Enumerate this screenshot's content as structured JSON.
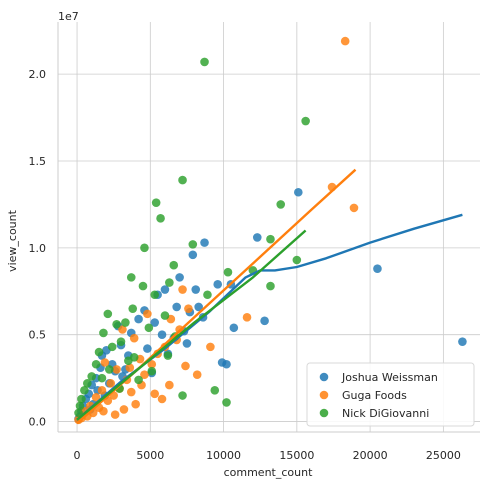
{
  "chart_data": {
    "type": "scatter",
    "title": "",
    "xlabel": "comment_count",
    "ylabel": "view_count",
    "y_offset_text": "1e7",
    "xlim": [
      -1300,
      27500
    ],
    "ylim": [
      -600000,
      23000000
    ],
    "x_ticks": [
      0,
      5000,
      10000,
      15000,
      20000,
      25000
    ],
    "x_tick_labels": [
      "0",
      "5000",
      "10000",
      "15000",
      "20000",
      "25000"
    ],
    "y_ticks": [
      0,
      5000000,
      10000000,
      15000000,
      20000000
    ],
    "y_tick_labels": [
      "0.0",
      "0.5",
      "1.0",
      "1.5",
      "2.0"
    ],
    "grid": true,
    "legend_position": "bottom-right",
    "series": [
      {
        "name": "Joshua Weissman",
        "color": "#1f77b4",
        "points": [
          [
            26300,
            4600000
          ],
          [
            20500,
            8800000
          ],
          [
            15100,
            13200000
          ],
          [
            12300,
            10600000
          ],
          [
            12800,
            5800000
          ],
          [
            10500,
            7900000
          ],
          [
            10700,
            5400000
          ],
          [
            9600,
            7900000
          ],
          [
            9900,
            3400000
          ],
          [
            10200,
            3300000
          ],
          [
            8700,
            10300000
          ],
          [
            8600,
            6000000
          ],
          [
            7900,
            9600000
          ],
          [
            8100,
            7600000
          ],
          [
            7700,
            6300000
          ],
          [
            7500,
            4500000
          ],
          [
            7000,
            8300000
          ],
          [
            6800,
            6600000
          ],
          [
            6000,
            7600000
          ],
          [
            5500,
            7300000
          ],
          [
            5800,
            5000000
          ],
          [
            4200,
            5900000
          ],
          [
            3700,
            5100000
          ],
          [
            3000,
            4400000
          ],
          [
            2800,
            5500000
          ],
          [
            2000,
            4100000
          ],
          [
            1700,
            3800000
          ],
          [
            1600,
            3100000
          ],
          [
            1300,
            2500000
          ],
          [
            1000,
            2100000
          ],
          [
            800,
            1600000
          ],
          [
            600,
            1300000
          ],
          [
            400,
            900000
          ],
          [
            300,
            600000
          ],
          [
            200,
            300000
          ],
          [
            100,
            150000
          ],
          [
            3500,
            3800000
          ],
          [
            2400,
            3300000
          ],
          [
            4800,
            4200000
          ],
          [
            6200,
            3900000
          ],
          [
            5100,
            2800000
          ],
          [
            7300,
            5200000
          ],
          [
            2200,
            2200000
          ],
          [
            1900,
            1500000
          ],
          [
            3100,
            2600000
          ],
          [
            900,
            700000
          ],
          [
            1400,
            1800000
          ],
          [
            4600,
            6400000
          ],
          [
            5300,
            5700000
          ],
          [
            6600,
            4800000
          ],
          [
            8300,
            6600000
          ],
          [
            3300,
            3000000
          ],
          [
            2600,
            2900000
          ],
          [
            1100,
            1000000
          ]
        ],
        "fit_line": [
          [
            0,
            100000
          ],
          [
            3000,
            2300000
          ],
          [
            6000,
            4200000
          ],
          [
            9000,
            6300000
          ],
          [
            11500,
            8300000
          ],
          [
            12500,
            8700000
          ],
          [
            13500,
            8700000
          ],
          [
            15000,
            8900000
          ],
          [
            17000,
            9400000
          ],
          [
            20000,
            10300000
          ],
          [
            23000,
            11100000
          ],
          [
            26300,
            11900000
          ]
        ]
      },
      {
        "name": "Guga Foods",
        "color": "#ff7f0e",
        "points": [
          [
            18300,
            21900000
          ],
          [
            17400,
            13500000
          ],
          [
            18900,
            12300000
          ],
          [
            11600,
            6000000
          ],
          [
            7200,
            7600000
          ],
          [
            7600,
            6500000
          ],
          [
            7000,
            5300000
          ],
          [
            6800,
            4700000
          ],
          [
            6400,
            5900000
          ],
          [
            6000,
            4300000
          ],
          [
            5500,
            3900000
          ],
          [
            5100,
            3300000
          ],
          [
            4800,
            6200000
          ],
          [
            4600,
            2700000
          ],
          [
            4300,
            3600000
          ],
          [
            3900,
            4800000
          ],
          [
            3600,
            3100000
          ],
          [
            3400,
            2400000
          ],
          [
            3100,
            5300000
          ],
          [
            2900,
            1900000
          ],
          [
            2700,
            3000000
          ],
          [
            2500,
            1500000
          ],
          [
            2300,
            2200000
          ],
          [
            2100,
            1200000
          ],
          [
            1900,
            3400000
          ],
          [
            1700,
            1800000
          ],
          [
            1500,
            800000
          ],
          [
            1300,
            1400000
          ],
          [
            1100,
            500000
          ],
          [
            900,
            900000
          ],
          [
            700,
            300000
          ],
          [
            500,
            600000
          ],
          [
            300,
            200000
          ],
          [
            100,
            100000
          ],
          [
            5300,
            1600000
          ],
          [
            4000,
            1000000
          ],
          [
            3200,
            700000
          ],
          [
            2600,
            400000
          ],
          [
            6300,
            2100000
          ],
          [
            8200,
            2700000
          ],
          [
            7400,
            3200000
          ],
          [
            9100,
            4300000
          ],
          [
            5800,
            1300000
          ],
          [
            4400,
            2100000
          ],
          [
            3700,
            1700000
          ],
          [
            1800,
            600000
          ]
        ],
        "fit_line": [
          [
            0,
            -100000
          ],
          [
            4000,
            2900000
          ],
          [
            8000,
            6000000
          ],
          [
            12000,
            9100000
          ],
          [
            16000,
            12200000
          ],
          [
            19000,
            14500000
          ]
        ]
      },
      {
        "name": "Nick DiGiovanni",
        "color": "#2ca02c",
        "points": [
          [
            8700,
            20700000
          ],
          [
            15600,
            17300000
          ],
          [
            7200,
            13900000
          ],
          [
            13900,
            12500000
          ],
          [
            5400,
            12600000
          ],
          [
            5700,
            11700000
          ],
          [
            13200,
            10500000
          ],
          [
            7900,
            10200000
          ],
          [
            4600,
            10000000
          ],
          [
            15000,
            9300000
          ],
          [
            6600,
            9000000
          ],
          [
            12000,
            8700000
          ],
          [
            10300,
            8600000
          ],
          [
            3700,
            8300000
          ],
          [
            6300,
            8000000
          ],
          [
            4500,
            7800000
          ],
          [
            13200,
            7800000
          ],
          [
            8900,
            7300000
          ],
          [
            5300,
            7300000
          ],
          [
            3800,
            6500000
          ],
          [
            2100,
            6200000
          ],
          [
            6000,
            6100000
          ],
          [
            3300,
            5700000
          ],
          [
            2700,
            5600000
          ],
          [
            4900,
            5400000
          ],
          [
            1800,
            5100000
          ],
          [
            6700,
            4900000
          ],
          [
            3000,
            4600000
          ],
          [
            2400,
            4300000
          ],
          [
            1500,
            4000000
          ],
          [
            3900,
            3700000
          ],
          [
            1300,
            3300000
          ],
          [
            2200,
            3000000
          ],
          [
            1000,
            2600000
          ],
          [
            700,
            2200000
          ],
          [
            500,
            1800000
          ],
          [
            300,
            1300000
          ],
          [
            200,
            900000
          ],
          [
            100,
            500000
          ],
          [
            9400,
            1800000
          ],
          [
            10200,
            1100000
          ],
          [
            7200,
            1500000
          ],
          [
            4200,
            2400000
          ],
          [
            5100,
            2900000
          ],
          [
            3500,
            3500000
          ],
          [
            1700,
            2500000
          ],
          [
            2900,
            1900000
          ],
          [
            6200,
            3800000
          ]
        ],
        "fit_line": [
          [
            0,
            100000
          ],
          [
            4000,
            2900000
          ],
          [
            8000,
            5700000
          ],
          [
            12000,
            8300000
          ],
          [
            15600,
            11000000
          ]
        ]
      }
    ]
  }
}
